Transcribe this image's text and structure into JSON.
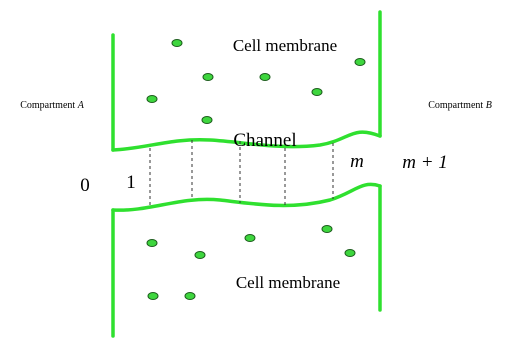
{
  "top_membrane": "Cell membrane",
  "bottom_membrane": "Cell membrane",
  "channel": "Channel",
  "compartments": [
    {
      "label": "Compartment",
      "name": "A"
    },
    {
      "label": "Compartment",
      "name": "B"
    }
  ],
  "sections": [
    "0",
    "1",
    "m",
    "m + 1"
  ]
}
